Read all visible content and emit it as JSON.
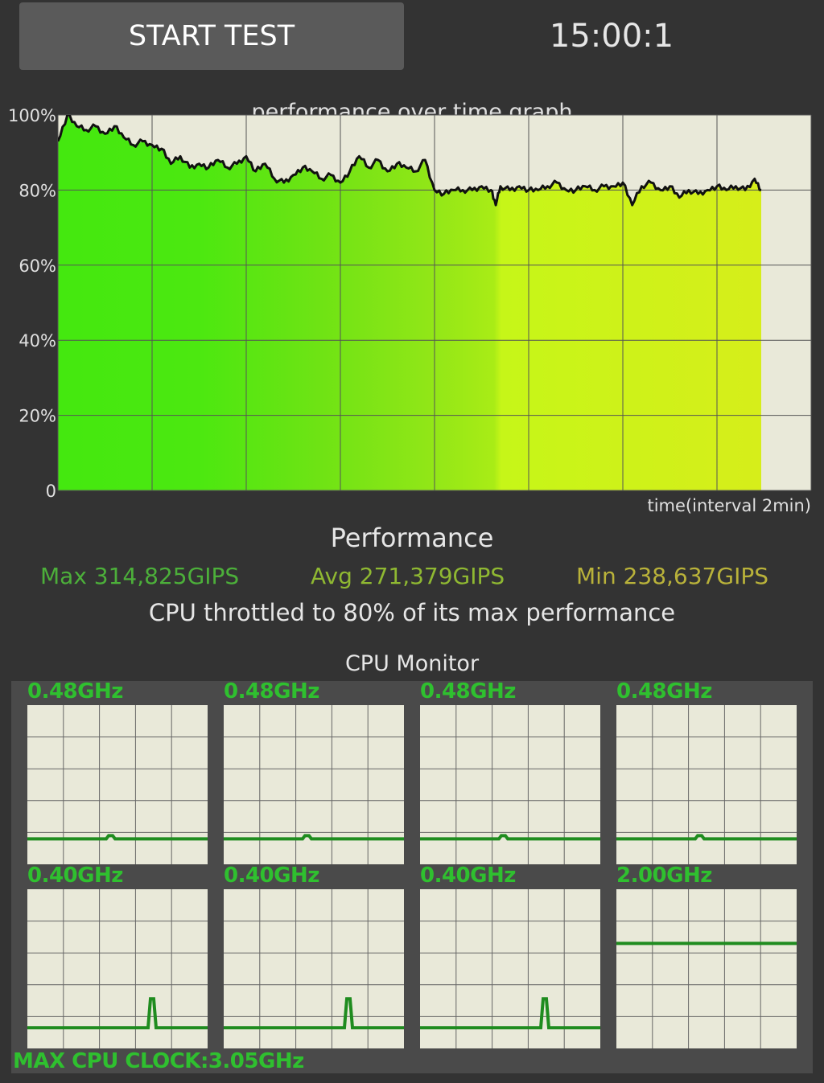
{
  "header": {
    "start_button_label": "START TEST",
    "timer": "15:00:1"
  },
  "perf_chart": {
    "title": "performance over time graph",
    "y_ticks": [
      "100%",
      "80%",
      "60%",
      "40%",
      "20%",
      "0"
    ],
    "x_label": "time(interval 2min)",
    "chart_data": {
      "type": "area",
      "title": "performance over time graph",
      "xlabel": "time(interval 2min)",
      "ylabel": "",
      "ylim": [
        0,
        100
      ],
      "y_ticks": [
        0,
        20,
        40,
        60,
        80,
        100
      ],
      "x_interval_min": 2,
      "x_range_intervals": [
        0,
        8
      ],
      "grid": true,
      "series": [
        {
          "x": [
            0,
            0.1,
            0.2,
            0.3,
            0.4,
            0.5,
            0.6,
            0.7,
            0.8,
            0.9,
            1.0,
            1.1,
            1.2,
            1.3,
            1.4,
            1.5,
            1.6,
            1.7,
            1.8,
            1.9,
            2.0,
            2.1,
            2.2,
            2.3,
            2.4,
            2.5,
            2.6,
            2.7,
            2.8,
            2.9,
            3.0,
            3.1,
            3.2,
            3.3,
            3.4,
            3.5,
            3.6,
            3.7,
            3.8,
            3.9,
            4.0,
            4.1,
            4.2,
            4.3,
            4.4,
            4.5,
            4.6,
            4.65,
            4.7,
            4.8,
            4.9,
            5.0,
            5.1,
            5.2,
            5.3,
            5.4,
            5.5,
            5.6,
            5.7,
            5.8,
            5.9,
            6.0,
            6.1,
            6.2,
            6.3,
            6.4,
            6.5,
            6.6,
            6.7,
            6.8,
            6.9,
            7.0,
            7.1,
            7.2,
            7.3,
            7.4,
            7.47
          ],
          "values": [
            93,
            100,
            97,
            96,
            97,
            95,
            97,
            94,
            92,
            93,
            92,
            91,
            87,
            89,
            86,
            87,
            86,
            88,
            86,
            87,
            89,
            85,
            87,
            83,
            82,
            84,
            86,
            85,
            83,
            84,
            82,
            85,
            89,
            86,
            88,
            85,
            87,
            86,
            85,
            88,
            80,
            79,
            80,
            80,
            80,
            81,
            80,
            76,
            81,
            80,
            81,
            80,
            80,
            81,
            82,
            80,
            80,
            81,
            80,
            81,
            81,
            82,
            76,
            81,
            82,
            80,
            81,
            78,
            80,
            79,
            80,
            81,
            80,
            81,
            80,
            83,
            80
          ]
        }
      ]
    }
  },
  "performance": {
    "heading": "Performance",
    "max": "Max 314,825GIPS",
    "avg": "Avg 271,379GIPS",
    "min": "Min 238,637GIPS",
    "throttle_text": "CPU throttled to 80% of its max performance",
    "colors": {
      "max": "#4caf3a",
      "avg": "#8fb832",
      "min": "#b9b23a"
    }
  },
  "cpu_monitor": {
    "heading": "CPU Monitor",
    "cores": [
      {
        "freq": "0.48GHz",
        "level": 0.16
      },
      {
        "freq": "0.48GHz",
        "level": 0.16
      },
      {
        "freq": "0.48GHz",
        "level": 0.16
      },
      {
        "freq": "0.48GHz",
        "level": 0.16
      },
      {
        "freq": "0.40GHz",
        "level": 0.13
      },
      {
        "freq": "0.40GHz",
        "level": 0.13
      },
      {
        "freq": "0.40GHz",
        "level": 0.13
      },
      {
        "freq": "2.00GHz",
        "level": 0.66
      }
    ],
    "max_clock": "MAX CPU CLOCK:3.05GHz",
    "line_color": "#1f8c1f"
  }
}
